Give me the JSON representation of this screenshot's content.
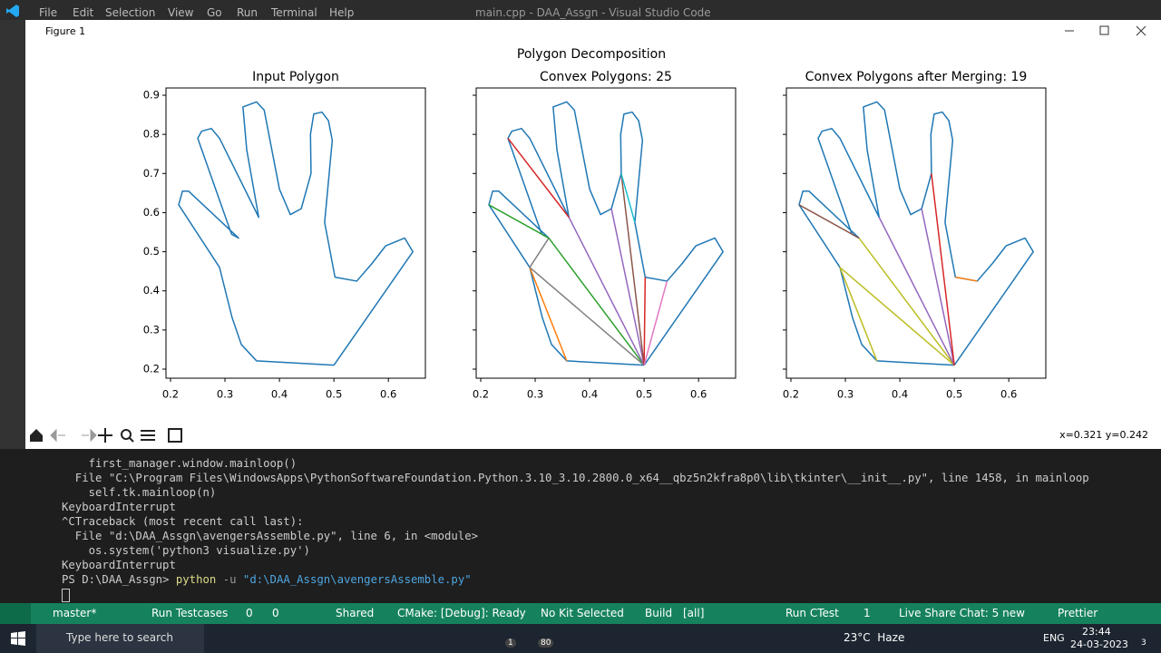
{
  "vscode": {
    "menu": [
      "File",
      "Edit",
      "Selection",
      "View",
      "Go",
      "Run",
      "Terminal",
      "Help"
    ],
    "title": "main.cpp - DAA_Assgn - Visual Studio Code"
  },
  "figure_window": {
    "title": "Figure 1",
    "suptitle": "Polygon Decomposition",
    "coordinates": "x=0.321 y=0.242"
  },
  "chart_data": [
    {
      "type": "line",
      "title": "Input Polygon",
      "xlim": [
        0.1917,
        0.668
      ],
      "ylim": [
        0.1768,
        0.9186
      ],
      "xticks": [
        0.2,
        0.3,
        0.4,
        0.5,
        0.6
      ],
      "yticks": [
        0.2,
        0.3,
        0.4,
        0.5,
        0.6,
        0.7,
        0.8,
        0.9
      ],
      "show_ytick_labels": true,
      "series": [
        {
          "color": "#1f77b4",
          "x": [
            0.5,
            0.645,
            0.63,
            0.595,
            0.57,
            0.542,
            0.502,
            0.483,
            0.497,
            0.49,
            0.478,
            0.463,
            0.457,
            0.458,
            0.44,
            0.42,
            0.4,
            0.372,
            0.358,
            0.333,
            0.34,
            0.362,
            0.29,
            0.275,
            0.257,
            0.25,
            0.312,
            0.325,
            0.233,
            0.222,
            0.215,
            0.29,
            0.313,
            0.33,
            0.358,
            0.5
          ],
          "values": [
            0.21,
            0.5,
            0.535,
            0.515,
            0.47,
            0.425,
            0.435,
            0.575,
            0.785,
            0.835,
            0.857,
            0.852,
            0.8,
            0.7,
            0.61,
            0.595,
            0.66,
            0.862,
            0.883,
            0.87,
            0.76,
            0.588,
            0.79,
            0.815,
            0.808,
            0.79,
            0.545,
            0.535,
            0.655,
            0.655,
            0.62,
            0.46,
            0.332,
            0.263,
            0.221,
            0.21
          ]
        }
      ]
    },
    {
      "type": "line",
      "title": "Convex Polygons: 25",
      "xlim": [
        0.1917,
        0.668
      ],
      "ylim": [
        0.1768,
        0.9186
      ],
      "xticks": [
        0.2,
        0.3,
        0.4,
        0.5,
        0.6
      ],
      "yticks": [
        0.2,
        0.3,
        0.4,
        0.5,
        0.6,
        0.7,
        0.8,
        0.9
      ],
      "show_ytick_labels": false,
      "series": [
        {
          "color": "#1f77b4",
          "x": [
            0.5,
            0.645,
            0.63,
            0.595,
            0.57,
            0.542,
            0.502,
            0.483,
            0.497,
            0.49,
            0.478,
            0.463,
            0.457,
            0.458,
            0.44,
            0.42,
            0.4,
            0.372,
            0.358,
            0.333,
            0.34,
            0.362,
            0.29,
            0.275,
            0.257,
            0.25,
            0.312,
            0.325,
            0.233,
            0.222,
            0.215,
            0.29,
            0.313,
            0.33,
            0.358,
            0.5
          ],
          "values": [
            0.21,
            0.5,
            0.535,
            0.515,
            0.47,
            0.425,
            0.435,
            0.575,
            0.785,
            0.835,
            0.857,
            0.852,
            0.8,
            0.7,
            0.61,
            0.595,
            0.66,
            0.862,
            0.883,
            0.87,
            0.76,
            0.588,
            0.79,
            0.815,
            0.808,
            0.79,
            0.545,
            0.535,
            0.655,
            0.655,
            0.62,
            0.46,
            0.332,
            0.263,
            0.221,
            0.21
          ]
        },
        {
          "color": "#ff7f0e",
          "x": [
            0.29,
            0.358
          ],
          "values": [
            0.46,
            0.221
          ]
        },
        {
          "color": "#7f7f7f",
          "x": [
            0.29,
            0.5
          ],
          "values": [
            0.46,
            0.21
          ]
        },
        {
          "color": "#2ca02c",
          "x": [
            0.325,
            0.5
          ],
          "values": [
            0.535,
            0.21
          ]
        },
        {
          "color": "#9467bd",
          "x": [
            0.362,
            0.5
          ],
          "values": [
            0.588,
            0.21
          ]
        },
        {
          "color": "#9467bd",
          "x": [
            0.44,
            0.5
          ],
          "values": [
            0.61,
            0.21
          ]
        },
        {
          "color": "#8c564b",
          "x": [
            0.458,
            0.5
          ],
          "values": [
            0.7,
            0.21
          ]
        },
        {
          "color": "#d62728",
          "x": [
            0.502,
            0.5
          ],
          "values": [
            0.435,
            0.21
          ]
        },
        {
          "color": "#e377c2",
          "x": [
            0.542,
            0.5
          ],
          "values": [
            0.425,
            0.21
          ]
        },
        {
          "color": "#7f7f7f",
          "x": [
            0.29,
            0.325
          ],
          "values": [
            0.46,
            0.535
          ]
        },
        {
          "color": "#2ca02c",
          "x": [
            0.215,
            0.325
          ],
          "values": [
            0.62,
            0.535
          ]
        },
        {
          "color": "#17becf",
          "x": [
            0.458,
            0.483
          ],
          "values": [
            0.7,
            0.575
          ]
        },
        {
          "color": "#d62728",
          "x": [
            0.25,
            0.362
          ],
          "values": [
            0.79,
            0.588
          ]
        }
      ]
    },
    {
      "type": "line",
      "title": "Convex Polygons after Merging: 19",
      "xlim": [
        0.1917,
        0.668
      ],
      "ylim": [
        0.1768,
        0.9186
      ],
      "xticks": [
        0.2,
        0.3,
        0.4,
        0.5,
        0.6
      ],
      "yticks": [
        0.2,
        0.3,
        0.4,
        0.5,
        0.6,
        0.7,
        0.8,
        0.9
      ],
      "show_ytick_labels": false,
      "series": [
        {
          "color": "#1f77b4",
          "x": [
            0.5,
            0.645,
            0.63,
            0.595,
            0.57,
            0.542,
            0.502,
            0.483,
            0.497,
            0.49,
            0.478,
            0.463,
            0.457,
            0.458,
            0.44,
            0.42,
            0.4,
            0.372,
            0.358,
            0.333,
            0.34,
            0.362,
            0.29,
            0.275,
            0.257,
            0.25,
            0.312,
            0.325,
            0.233,
            0.222,
            0.215,
            0.29,
            0.313,
            0.33,
            0.358,
            0.5
          ],
          "values": [
            0.21,
            0.5,
            0.535,
            0.515,
            0.47,
            0.425,
            0.435,
            0.575,
            0.785,
            0.835,
            0.857,
            0.852,
            0.8,
            0.7,
            0.61,
            0.595,
            0.66,
            0.862,
            0.883,
            0.87,
            0.76,
            0.588,
            0.79,
            0.815,
            0.808,
            0.79,
            0.545,
            0.535,
            0.655,
            0.655,
            0.62,
            0.46,
            0.332,
            0.263,
            0.221,
            0.21
          ]
        },
        {
          "color": "#bcbd22",
          "x": [
            0.29,
            0.358
          ],
          "values": [
            0.46,
            0.221
          ]
        },
        {
          "color": "#bcbd22",
          "x": [
            0.29,
            0.5
          ],
          "values": [
            0.46,
            0.21
          ]
        },
        {
          "color": "#bcbd22",
          "x": [
            0.325,
            0.5
          ],
          "values": [
            0.535,
            0.21
          ]
        },
        {
          "color": "#9467bd",
          "x": [
            0.362,
            0.5
          ],
          "values": [
            0.588,
            0.21
          ]
        },
        {
          "color": "#9467bd",
          "x": [
            0.44,
            0.5
          ],
          "values": [
            0.61,
            0.21
          ]
        },
        {
          "color": "#d62728",
          "x": [
            0.458,
            0.5
          ],
          "values": [
            0.7,
            0.21
          ]
        },
        {
          "color": "#ff7f0e",
          "x": [
            0.502,
            0.542
          ],
          "values": [
            0.435,
            0.425
          ]
        },
        {
          "color": "#8c564b",
          "x": [
            0.215,
            0.325
          ],
          "values": [
            0.62,
            0.535
          ]
        }
      ]
    }
  ],
  "terminal": {
    "lines": [
      "    first_manager.window.mainloop()",
      "  File \"C:\\Program Files\\WindowsApps\\PythonSoftwareFoundation.Python.3.10_3.10.2800.0_x64__qbz5n2kfra8p0\\lib\\tkinter\\__init__.py\", line 1458, in mainloop",
      "    self.tk.mainloop(n)",
      "KeyboardInterrupt",
      "^CTraceback (most recent call last):",
      "  File \"d:\\DAA_Assgn\\avengersAssemble.py\", line 6, in <module>",
      "    os.system('python3 visualize.py')",
      "KeyboardInterrupt"
    ],
    "prompt": "PS D:\\DAA_Assgn>",
    "command": "python",
    "flag": "-u",
    "argument": "\"d:\\DAA_Assgn\\avengersAssemble.py\""
  },
  "status_bar": {
    "items": [
      "master*",
      "Run Testcases",
      "0",
      "0",
      "Shared",
      "CMake: [Debug]: Ready",
      "No Kit Selected",
      "Build",
      "[all]",
      "Run CTest",
      "1",
      "Live Share Chat: 5 new",
      "Prettier"
    ]
  },
  "taskbar": {
    "search": "Type here to search",
    "badges": [
      "1",
      "80"
    ],
    "weather": "23°C  Haze",
    "language": "ENG",
    "time": "23:44",
    "date": "24-03-2023",
    "notifications": "3"
  }
}
